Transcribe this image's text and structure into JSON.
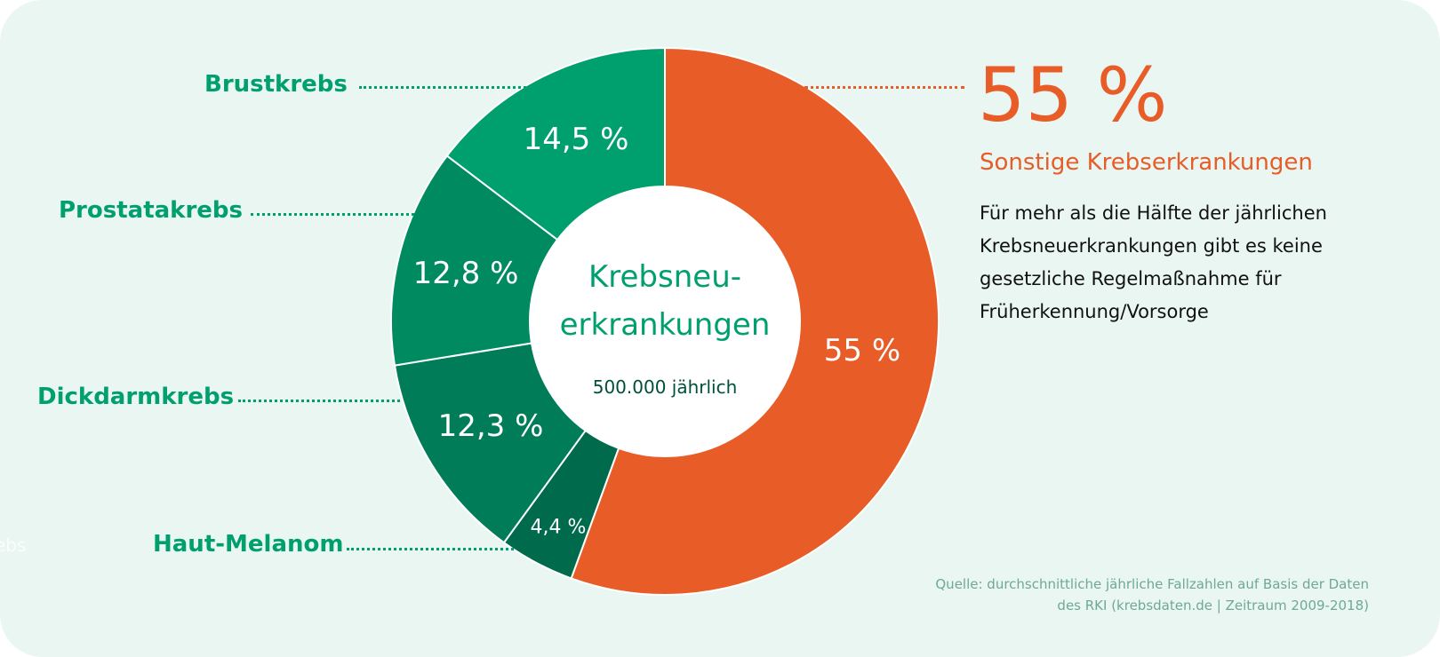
{
  "colors": {
    "background": "#eaf6f2",
    "accent_orange": "#e85c27",
    "label_green": "#00a06e"
  },
  "chart_data": {
    "type": "pie",
    "variant": "donut",
    "start": "top, clockwise",
    "center_title": "Krebsneu-\nerkrankungen",
    "center_subtitle": "500.000 jährlich",
    "slices": [
      {
        "name": "Sonstige Krebserkrankungen",
        "value": 55,
        "label": "55 %",
        "color": "#e85c27"
      },
      {
        "name": "Haut-Melanom",
        "value": 4.4,
        "label": "4,4 %",
        "color": "#006b4c"
      },
      {
        "name": "Dickdarmkrebs",
        "value": 12.3,
        "label": "12,3 %",
        "color": "#007d58"
      },
      {
        "name": "Prostatakrebs",
        "value": 12.8,
        "label": "12,8 %",
        "color": "#008a60"
      },
      {
        "name": "Brustkrebs",
        "value": 14.5,
        "label": "14,5 %",
        "color": "#00a06e"
      }
    ]
  },
  "callout": {
    "big_value": "55 %",
    "title": "Sonstige Krebserkrankungen",
    "description": "Für mehr als die Hälfte der jährlichen Krebsneuerkrankungen gibt es keine gesetzliche Regelmaßnahme für Früherkennung/Vorsorge"
  },
  "source": "Quelle: durchschnittliche jährliche Fallzahlen auf Basis der Daten des RKI (krebsdaten.de | Zeitraum 2009-2018)",
  "ghost_text": "ebs"
}
